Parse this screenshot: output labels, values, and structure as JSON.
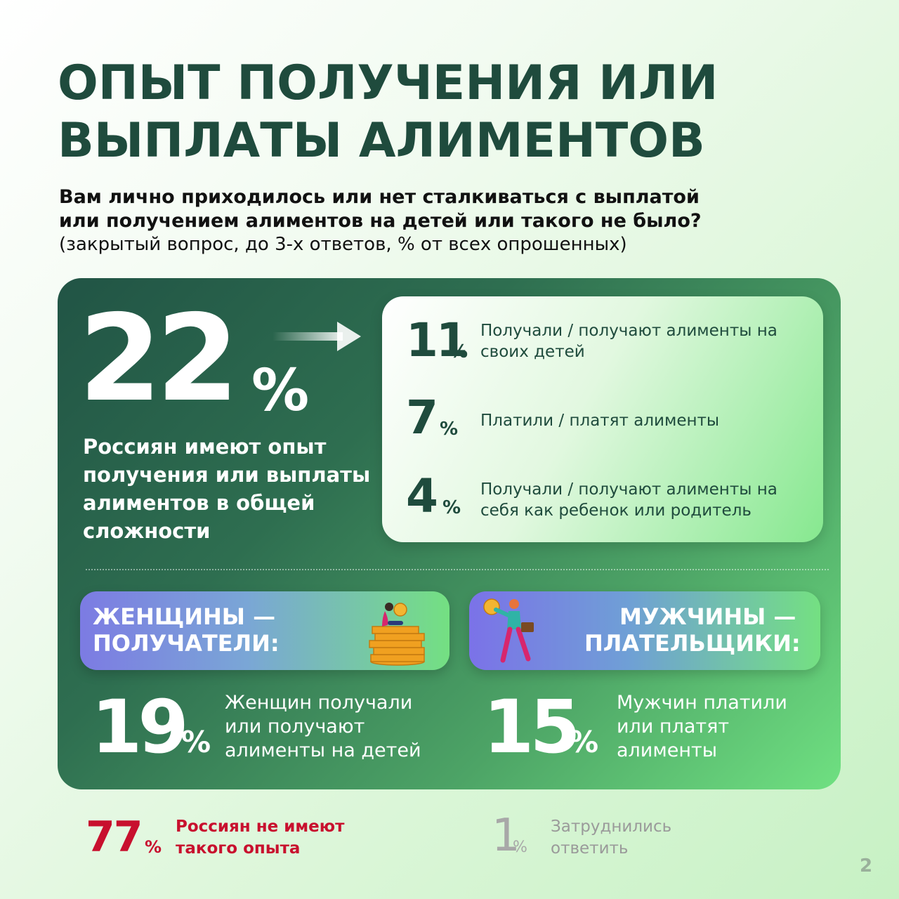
{
  "title": "ОПЫТ ПОЛУЧЕНИЯ ИЛИ ВЫПЛАТЫ АЛИМЕНТОВ",
  "question": {
    "line1": "Вам лично приходилось или нет сталкиваться с выплатой",
    "line2": "или получением алиментов на детей или такого не было?",
    "note": "(закрытый вопрос, до 3-х ответов, % от всех опрошенных)"
  },
  "total": {
    "value": "22",
    "pct": "%",
    "description": "Россиян имеют опыт получения или выплаты алиментов в общей сложности"
  },
  "breakdown": [
    {
      "value": "11",
      "pct": "%",
      "label": "Получали / получают алименты на своих детей"
    },
    {
      "value": "7",
      "pct": "%",
      "label": "Платили / платят алименты"
    },
    {
      "value": "4",
      "pct": "%",
      "label": "Получали / получают алименты на себя как ребенок или родитель"
    }
  ],
  "women": {
    "heading_line1": "ЖЕНЩИНЫ —",
    "heading_line2": "ПОЛУЧАТЕЛИ:",
    "value": "19",
    "pct": "%",
    "text": "Женщин получали или получают алименты на детей",
    "illustration": "woman-on-coins-icon"
  },
  "men": {
    "heading_line1": "МУЖЧИНЫ —",
    "heading_line2": "ПЛАТЕЛЬЩИКИ:",
    "value": "15",
    "pct": "%",
    "text": "Мужчин платили или платят алименты",
    "illustration": "man-carrying-coin-icon"
  },
  "no_experience": {
    "value": "77",
    "pct": "%",
    "text": "Россиян не имеют такого опыта"
  },
  "hard_to_answer": {
    "value": "1",
    "pct": "%",
    "text": "Затруднились ответить"
  },
  "page_number": "2",
  "colors": {
    "title": "#1f4b3d",
    "accent_red": "#c8102e",
    "muted_gray": "#a8a8a8",
    "card_dark": "#215445",
    "card_light": "#6fe081"
  }
}
